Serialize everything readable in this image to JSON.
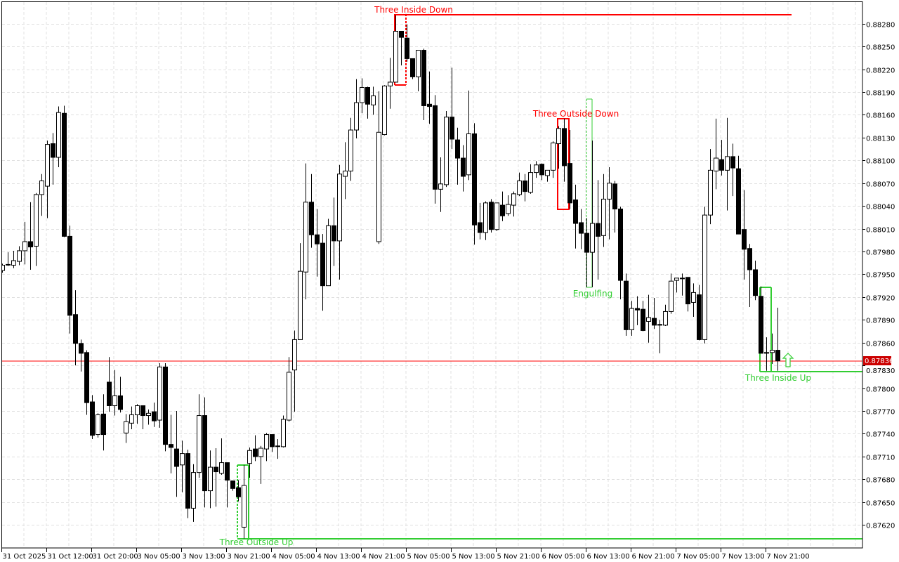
{
  "chart_data": {
    "type": "candlestick",
    "title": "",
    "xlabel": "",
    "ylabel": "",
    "ylim": [
      0.87596,
      0.8831
    ],
    "grid": true,
    "y_ticks": [
      "0.88280",
      "0.88250",
      "0.88220",
      "0.88190",
      "0.88160",
      "0.88130",
      "0.88100",
      "0.88070",
      "0.88040",
      "0.88010",
      "0.87980",
      "0.87950",
      "0.87920",
      "0.87890",
      "0.87860",
      "0.87830",
      "0.87800",
      "0.87770",
      "0.87740",
      "0.87710",
      "0.87680",
      "0.87650",
      "0.87620"
    ],
    "x_ticks": [
      "31 Oct 2025",
      "31 Oct 12:00",
      "31 Oct 20:00",
      "3 Nov 05:00",
      "3 Nov 13:00",
      "3 Nov 21:00",
      "4 Nov 05:00",
      "4 Nov 13:00",
      "4 Nov 21:00",
      "5 Nov 05:00",
      "5 Nov 13:00",
      "5 Nov 21:00",
      "6 Nov 05:00",
      "6 Nov 13:00",
      "6 Nov 21:00",
      "7 Nov 05:00",
      "7 Nov 13:00",
      "7 Nov 21:00"
    ],
    "candle_fields": [
      "open",
      "high",
      "low",
      "close"
    ],
    "candles": [
      [
        0.87955,
        0.87964,
        0.87952,
        0.87962
      ],
      [
        0.87963,
        0.87979,
        0.87961,
        0.87963
      ],
      [
        0.87962,
        0.87981,
        0.87958,
        0.87968
      ],
      [
        0.87967,
        0.87987,
        0.87962,
        0.87981
      ],
      [
        0.87981,
        0.88019,
        0.87963,
        0.87993
      ],
      [
        0.87993,
        0.88045,
        0.87956,
        0.87986
      ],
      [
        0.87987,
        0.88057,
        0.87961,
        0.88055
      ],
      [
        0.88055,
        0.88082,
        0.88027,
        0.88073
      ],
      [
        0.88066,
        0.88126,
        0.88024,
        0.88121
      ],
      [
        0.88122,
        0.88136,
        0.88068,
        0.88104
      ],
      [
        0.88104,
        0.88171,
        0.88091,
        0.88163
      ],
      [
        0.88162,
        0.88172,
        0.87999,
        0.88
      ],
      [
        0.88,
        0.88014,
        0.87872,
        0.87896
      ],
      [
        0.87897,
        0.87929,
        0.8783,
        0.87859
      ],
      [
        0.87859,
        0.87864,
        0.87822,
        0.87846
      ],
      [
        0.87847,
        0.8785,
        0.87765,
        0.87781
      ],
      [
        0.87782,
        0.87791,
        0.87733,
        0.87738
      ],
      [
        0.87739,
        0.87767,
        0.87735,
        0.87765
      ],
      [
        0.87766,
        0.87792,
        0.87718,
        0.87739
      ],
      [
        0.87808,
        0.87841,
        0.87769,
        0.87777
      ],
      [
        0.87777,
        0.87824,
        0.87764,
        0.8779
      ],
      [
        0.8779,
        0.87815,
        0.87768,
        0.87772
      ],
      [
        0.87741,
        0.87766,
        0.87728,
        0.87756
      ],
      [
        0.87754,
        0.87776,
        0.87746,
        0.87765
      ],
      [
        0.87765,
        0.87779,
        0.87753,
        0.87777
      ],
      [
        0.87777,
        0.87777,
        0.87746,
        0.87764
      ],
      [
        0.87764,
        0.87772,
        0.87752,
        0.87767
      ],
      [
        0.87769,
        0.87781,
        0.87749,
        0.87757
      ],
      [
        0.87758,
        0.87833,
        0.87748,
        0.87828
      ],
      [
        0.87828,
        0.87833,
        0.87717,
        0.87726
      ],
      [
        0.87726,
        0.87765,
        0.87688,
        0.87722
      ],
      [
        0.8772,
        0.8777,
        0.87657,
        0.87697
      ],
      [
        0.87699,
        0.87731,
        0.87663,
        0.87714
      ],
      [
        0.87714,
        0.87719,
        0.87629,
        0.87642
      ],
      [
        0.87642,
        0.877,
        0.87624,
        0.87689
      ],
      [
        0.87689,
        0.87792,
        0.87682,
        0.87764
      ],
      [
        0.87764,
        0.87788,
        0.87643,
        0.87665
      ],
      [
        0.87665,
        0.87718,
        0.87642,
        0.87696
      ],
      [
        0.87696,
        0.87721,
        0.87644,
        0.8769
      ],
      [
        0.87688,
        0.87734,
        0.87686,
        0.87702
      ],
      [
        0.87702,
        0.87702,
        0.87643,
        0.87679
      ],
      [
        0.87678,
        0.87678,
        0.87665,
        0.87668
      ],
      [
        0.87669,
        0.87679,
        0.87651,
        0.87657
      ],
      [
        0.87617,
        0.87699,
        0.87602,
        0.87672
      ],
      [
        0.87701,
        0.87722,
        0.87682,
        0.87718
      ],
      [
        0.8772,
        0.87738,
        0.87704,
        0.8771
      ],
      [
        0.8771,
        0.87724,
        0.87674,
        0.87721
      ],
      [
        0.8772,
        0.87741,
        0.87704,
        0.87739
      ],
      [
        0.87739,
        0.87739,
        0.87716,
        0.87723
      ],
      [
        0.87724,
        0.87733,
        0.87707,
        0.87724
      ],
      [
        0.87723,
        0.87764,
        0.87722,
        0.87759
      ],
      [
        0.87758,
        0.87841,
        0.87756,
        0.87821
      ],
      [
        0.87824,
        0.87876,
        0.87769,
        0.87864
      ],
      [
        0.87864,
        0.87991,
        0.87864,
        0.87954
      ],
      [
        0.87953,
        0.88096,
        0.87917,
        0.88045
      ],
      [
        0.88045,
        0.88082,
        0.87985,
        0.88002
      ],
      [
        0.88002,
        0.88036,
        0.87947,
        0.8799
      ],
      [
        0.87991,
        0.88003,
        0.87902,
        0.87935
      ],
      [
        0.87935,
        0.88023,
        0.87935,
        0.88014
      ],
      [
        0.88014,
        0.88051,
        0.87961,
        0.87994
      ],
      [
        0.87994,
        0.88094,
        0.87943,
        0.88082
      ],
      [
        0.88079,
        0.88124,
        0.88049,
        0.88086
      ],
      [
        0.88086,
        0.88156,
        0.88073,
        0.8814
      ],
      [
        0.8814,
        0.88207,
        0.88129,
        0.88176
      ],
      [
        0.88176,
        0.88208,
        0.88162,
        0.88196
      ],
      [
        0.88196,
        0.88197,
        0.88155,
        0.88174
      ],
      [
        0.88173,
        0.88197,
        0.8816,
        0.88185
      ],
      [
        0.87993,
        0.88191,
        0.8799,
        0.88137
      ],
      [
        0.88134,
        0.88199,
        0.88133,
        0.88198
      ],
      [
        0.88198,
        0.88235,
        0.88168,
        0.88203
      ],
      [
        0.88203,
        0.88291,
        0.88203,
        0.8827
      ],
      [
        0.8827,
        0.8827,
        0.88225,
        0.88262
      ],
      [
        0.88261,
        0.88279,
        0.8823,
        0.88234
      ],
      [
        0.88234,
        0.88234,
        0.88207,
        0.8821
      ],
      [
        0.8821,
        0.88245,
        0.88191,
        0.88245
      ],
      [
        0.88245,
        0.88247,
        0.88153,
        0.88172
      ],
      [
        0.88174,
        0.88217,
        0.88148,
        0.88171
      ],
      [
        0.88172,
        0.88186,
        0.88043,
        0.88062
      ],
      [
        0.88062,
        0.88104,
        0.88032,
        0.88069
      ],
      [
        0.88068,
        0.88165,
        0.88065,
        0.88157
      ],
      [
        0.88157,
        0.88222,
        0.88115,
        0.88128
      ],
      [
        0.88127,
        0.88143,
        0.88068,
        0.88103
      ],
      [
        0.88103,
        0.8812,
        0.88059,
        0.88079
      ],
      [
        0.88081,
        0.88192,
        0.88074,
        0.88135
      ],
      [
        0.88135,
        0.88149,
        0.87989,
        0.88015
      ],
      [
        0.88018,
        0.88044,
        0.87996,
        0.88005
      ],
      [
        0.88005,
        0.88046,
        0.87995,
        0.88044
      ],
      [
        0.88045,
        0.88049,
        0.88005,
        0.88009
      ],
      [
        0.88009,
        0.88044,
        0.88007,
        0.88044
      ],
      [
        0.88041,
        0.88059,
        0.8802,
        0.88027
      ],
      [
        0.8803,
        0.88054,
        0.88027,
        0.88042
      ],
      [
        0.88041,
        0.88059,
        0.88026,
        0.88056
      ],
      [
        0.88055,
        0.88084,
        0.88053,
        0.88073
      ],
      [
        0.88073,
        0.88082,
        0.88046,
        0.88059
      ],
      [
        0.88058,
        0.88095,
        0.88056,
        0.88084
      ],
      [
        0.88084,
        0.88099,
        0.88077,
        0.88094
      ],
      [
        0.88095,
        0.88096,
        0.88074,
        0.88081
      ],
      [
        0.8808,
        0.88087,
        0.88072,
        0.88087
      ],
      [
        0.88087,
        0.88125,
        0.88077,
        0.88123
      ],
      [
        0.88122,
        0.88145,
        0.88089,
        0.88142
      ],
      [
        0.88142,
        0.88155,
        0.88072,
        0.88093
      ],
      [
        0.88096,
        0.8814,
        0.88036,
        0.88044
      ],
      [
        0.88048,
        0.88068,
        0.87984,
        0.88017
      ],
      [
        0.88018,
        0.88036,
        0.87983,
        0.88004
      ],
      [
        0.88004,
        0.88024,
        0.87933,
        0.87979
      ],
      [
        0.87979,
        0.88126,
        0.87933,
        0.88017
      ],
      [
        0.88017,
        0.88074,
        0.87943,
        0.88
      ],
      [
        0.88001,
        0.88082,
        0.87986,
        0.88049
      ],
      [
        0.88049,
        0.88091,
        0.87996,
        0.8807
      ],
      [
        0.88069,
        0.88073,
        0.88005,
        0.88036
      ],
      [
        0.88036,
        0.88039,
        0.87917,
        0.87942
      ],
      [
        0.87941,
        0.87951,
        0.87869,
        0.87877
      ],
      [
        0.87877,
        0.87915,
        0.87869,
        0.87905
      ],
      [
        0.87905,
        0.87921,
        0.87883,
        0.87903
      ],
      [
        0.87904,
        0.87915,
        0.87875,
        0.87876
      ],
      [
        0.87888,
        0.87923,
        0.8786,
        0.87893
      ],
      [
        0.87892,
        0.87919,
        0.87878,
        0.87883
      ],
      [
        0.87884,
        0.8789,
        0.87846,
        0.87883
      ],
      [
        0.87883,
        0.8791,
        0.87882,
        0.87901
      ],
      [
        0.87901,
        0.87951,
        0.87898,
        0.87941
      ],
      [
        0.87942,
        0.87945,
        0.87926,
        0.87945
      ],
      [
        0.87945,
        0.87951,
        0.87922,
        0.87945
      ],
      [
        0.87946,
        0.87946,
        0.87901,
        0.87911
      ],
      [
        0.87913,
        0.87938,
        0.87894,
        0.87926
      ],
      [
        0.87923,
        0.87936,
        0.87863,
        0.87864
      ],
      [
        0.87864,
        0.88039,
        0.87859,
        0.88028
      ],
      [
        0.88028,
        0.88115,
        0.88016,
        0.88087
      ],
      [
        0.88086,
        0.88155,
        0.88062,
        0.88103
      ],
      [
        0.88101,
        0.88127,
        0.8808,
        0.88087
      ],
      [
        0.88087,
        0.88156,
        0.88034,
        0.88105
      ],
      [
        0.88105,
        0.88122,
        0.88053,
        0.8809
      ],
      [
        0.88089,
        0.88106,
        0.88003,
        0.88003
      ],
      [
        0.88009,
        0.88061,
        0.87943,
        0.87983
      ],
      [
        0.87984,
        0.8799,
        0.87907,
        0.87956
      ],
      [
        0.87956,
        0.87968,
        0.87916,
        0.87922
      ],
      [
        0.87921,
        0.87934,
        0.87846,
        0.87846
      ],
      [
        0.87847,
        0.87867,
        0.87823,
        0.87847
      ],
      [
        0.87847,
        0.87872,
        0.87832,
        0.8785
      ],
      [
        0.8785,
        0.87906,
        0.87823,
        0.87836
      ]
    ],
    "current_price": "0.87836",
    "colors": {
      "bull_body": "#ffffff",
      "bear_body": "#000000",
      "candle_outline": "#000000",
      "bid_line": "#ff0000",
      "price_tag": "#cc0000",
      "bearish_pattern": "#ff0000",
      "bullish_pattern": "#32cd32",
      "grid": "#e0e0e0"
    },
    "annotations": {
      "three_inside_down": "Three Inside Down",
      "three_outside_down": "Three Outside Down",
      "engulfing": "Engulfing",
      "three_outside_up": "Three Outside Up",
      "three_inside_up": "Three Inside Up",
      "signal_icon": "up-arrow-icon"
    }
  }
}
